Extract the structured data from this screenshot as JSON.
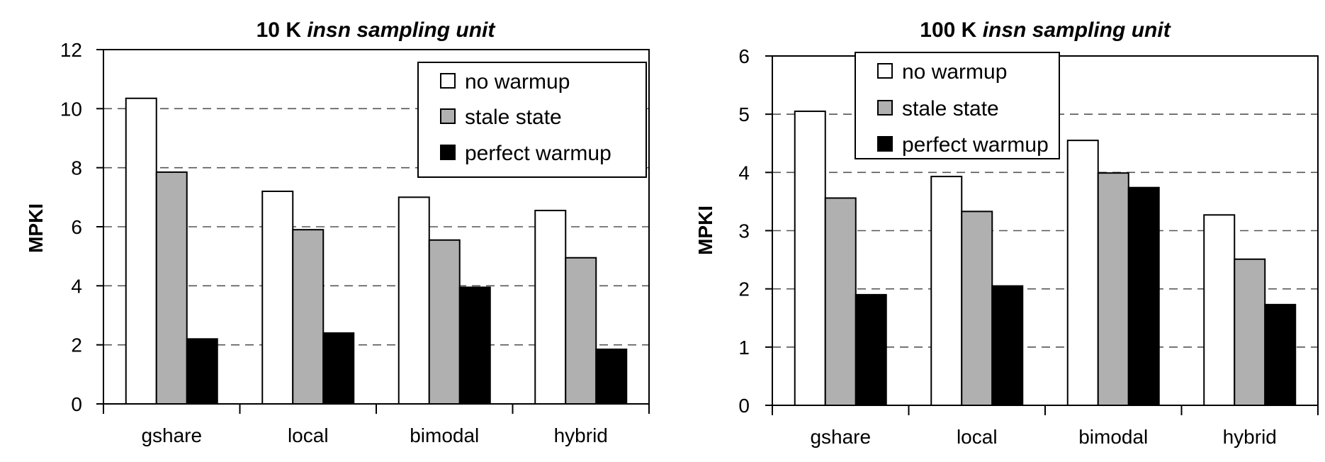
{
  "chart_data": [
    {
      "type": "bar",
      "title": "10 K insn sampling unit",
      "title_bold": "10 K ",
      "title_italic": "insn sampling unit",
      "ylabel": "MPKI",
      "xlabel": "",
      "categories": [
        "gshare",
        "local",
        "bimodal",
        "hybrid"
      ],
      "ylim": [
        0,
        12
      ],
      "yticks": [
        "0",
        "2",
        "4",
        "6",
        "8",
        "10",
        "12"
      ],
      "grid": "dashed horizontal",
      "legend_position": "top-right",
      "series": [
        {
          "name": "no warmup",
          "color": "#ffffff",
          "values": [
            10.35,
            7.2,
            7.0,
            6.55
          ]
        },
        {
          "name": "stale state",
          "color": "#b0b0b0",
          "values": [
            7.85,
            5.9,
            5.55,
            4.95
          ]
        },
        {
          "name": "perfect warmup",
          "color": "#000000",
          "values": [
            2.2,
            2.4,
            3.95,
            1.85
          ]
        }
      ]
    },
    {
      "type": "bar",
      "title": "100 K insn sampling unit",
      "title_bold": "100 K ",
      "title_italic": "insn sampling unit",
      "ylabel": "MPKI",
      "xlabel": "",
      "categories": [
        "gshare",
        "local",
        "bimodal",
        "hybrid"
      ],
      "ylim": [
        0,
        6
      ],
      "yticks": [
        "0",
        "1",
        "2",
        "3",
        "4",
        "5",
        "6"
      ],
      "grid": "dashed horizontal",
      "legend_position": "top-left",
      "series": [
        {
          "name": "no warmup",
          "color": "#ffffff",
          "values": [
            5.05,
            3.93,
            4.55,
            3.27
          ]
        },
        {
          "name": "stale state",
          "color": "#b0b0b0",
          "values": [
            3.56,
            3.33,
            3.99,
            2.51
          ]
        },
        {
          "name": "perfect warmup",
          "color": "#000000",
          "values": [
            1.9,
            2.05,
            3.74,
            1.73
          ]
        }
      ]
    }
  ]
}
